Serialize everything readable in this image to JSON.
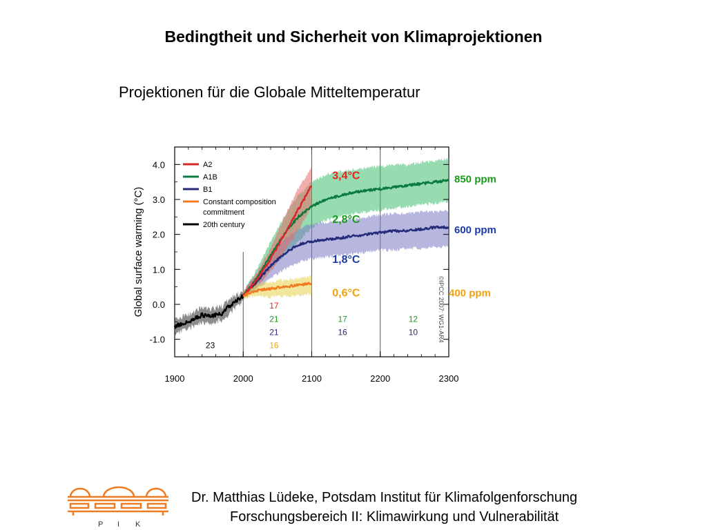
{
  "slide": {
    "title": "Bedingtheit und Sicherheit von Klimaprojektionen",
    "subtitle": "Projektionen für die Globale Mitteltemperatur"
  },
  "footer": {
    "line1": "Dr. Matthias Lüdeke, Potsdam Institut für Klimafolgenforschung",
    "line2": "Forschungsbereich II: Klimawirkung und Vulnerabilität",
    "logo_letters": [
      "P",
      "I",
      "K"
    ]
  },
  "colors": {
    "A2": "#d62728",
    "A1B": "#0b7a3e",
    "B1": "#242a7a",
    "constant": "#f07a20",
    "century20": "#000000",
    "ppm850": "#1a9a1a",
    "ppm600": "#1a3aa8",
    "ppm400": "#f0a010",
    "logo": "#f07a20"
  },
  "chart_data": {
    "type": "line",
    "ylabel": "Global surface warming (°C)",
    "xlim": [
      1900,
      2300
    ],
    "ylim": [
      -1.5,
      4.5
    ],
    "x_ticks": [
      1900,
      2000,
      2100,
      2200,
      2300
    ],
    "y_ticks": [
      {
        "v": 4.0,
        "label": "4.0"
      },
      {
        "v": 3.0,
        "label": "3.0"
      },
      {
        "v": 2.0,
        "label": "2.0"
      },
      {
        "v": 1.0,
        "label": "1.0"
      },
      {
        "v": 0.0,
        "label": "0.0"
      },
      {
        "v": -1.0,
        "label": "-1.0"
      }
    ],
    "vlines": [
      2000,
      2100,
      2200
    ],
    "legend": {
      "position": "top-left",
      "entries": [
        {
          "key": "A2",
          "label": "A2"
        },
        {
          "key": "A1B",
          "label": "A1B"
        },
        {
          "key": "B1",
          "label": "B1"
        },
        {
          "key": "constant",
          "label": "Constant composition",
          "label2": "commitment"
        },
        {
          "key": "century20",
          "label": "20th century"
        }
      ]
    },
    "series": [
      {
        "key": "century20",
        "name": "20th century",
        "x": [
          1900,
          1910,
          1920,
          1930,
          1940,
          1950,
          1960,
          1970,
          1980,
          1990,
          2000
        ],
        "y": [
          -0.65,
          -0.55,
          -0.5,
          -0.4,
          -0.3,
          -0.35,
          -0.3,
          -0.25,
          -0.05,
          0.1,
          0.25
        ],
        "lower": [
          -0.85,
          -0.75,
          -0.7,
          -0.6,
          -0.5,
          -0.55,
          -0.5,
          -0.45,
          -0.25,
          -0.08,
          0.12
        ],
        "upper": [
          -0.45,
          -0.35,
          -0.3,
          -0.2,
          -0.1,
          -0.15,
          -0.1,
          -0.05,
          0.15,
          0.28,
          0.38
        ]
      },
      {
        "key": "A2",
        "name": "A2",
        "x": [
          2000,
          2020,
          2040,
          2060,
          2080,
          2100
        ],
        "y": [
          0.25,
          0.7,
          1.3,
          2.0,
          2.7,
          3.4
        ],
        "lower": [
          0.15,
          0.5,
          0.95,
          1.5,
          2.1,
          2.8
        ],
        "upper": [
          0.35,
          0.9,
          1.6,
          2.5,
          3.3,
          3.9
        ]
      },
      {
        "key": "A1B",
        "name": "A1B",
        "x": [
          2000,
          2020,
          2040,
          2060,
          2080,
          2100,
          2120,
          2140,
          2160,
          2180,
          2200,
          2220,
          2240,
          2260,
          2280,
          2300
        ],
        "y": [
          0.25,
          0.75,
          1.4,
          2.0,
          2.5,
          2.8,
          3.0,
          3.1,
          3.2,
          3.25,
          3.3,
          3.35,
          3.4,
          3.45,
          3.5,
          3.55
        ],
        "lower": [
          0.15,
          0.5,
          1.0,
          1.4,
          1.8,
          2.2,
          2.4,
          2.5,
          2.6,
          2.65,
          2.7,
          2.75,
          2.8,
          2.85,
          2.9,
          2.95
        ],
        "upper": [
          0.35,
          1.0,
          1.8,
          2.5,
          3.1,
          3.5,
          3.7,
          3.8,
          3.85,
          3.9,
          3.95,
          4.0,
          4.0,
          4.05,
          4.1,
          4.15
        ]
      },
      {
        "key": "B1",
        "name": "B1",
        "x": [
          2000,
          2020,
          2040,
          2060,
          2080,
          2100,
          2120,
          2140,
          2160,
          2180,
          2200,
          2220,
          2240,
          2260,
          2280,
          2300
        ],
        "y": [
          0.25,
          0.65,
          1.1,
          1.45,
          1.7,
          1.8,
          1.85,
          1.9,
          1.95,
          2.0,
          2.05,
          2.1,
          2.1,
          2.15,
          2.2,
          2.2
        ],
        "lower": [
          0.15,
          0.45,
          0.75,
          1.0,
          1.2,
          1.3,
          1.35,
          1.4,
          1.45,
          1.5,
          1.55,
          1.55,
          1.6,
          1.6,
          1.65,
          1.65
        ],
        "upper": [
          0.35,
          0.85,
          1.4,
          1.85,
          2.15,
          2.3,
          2.35,
          2.4,
          2.45,
          2.5,
          2.55,
          2.6,
          2.6,
          2.65,
          2.65,
          2.7
        ]
      },
      {
        "key": "constant",
        "name": "Constant composition commitment",
        "x": [
          2000,
          2020,
          2040,
          2060,
          2080,
          2100
        ],
        "y": [
          0.25,
          0.4,
          0.45,
          0.5,
          0.55,
          0.6
        ],
        "lower": [
          0.15,
          0.25,
          0.2,
          0.25,
          0.25,
          0.3
        ],
        "upper": [
          0.35,
          0.6,
          0.65,
          0.7,
          0.75,
          0.8
        ]
      }
    ],
    "annotations": [
      {
        "text": "3,4°C",
        "x": 2130,
        "y": 3.7,
        "color": "#e8231b"
      },
      {
        "text": "2,8°C",
        "x": 2130,
        "y": 2.45,
        "color": "#1a9a1a"
      },
      {
        "text": "1,8°C",
        "x": 2130,
        "y": 1.3,
        "color": "#1a3aa8"
      },
      {
        "text": "0,6°C",
        "x": 2130,
        "y": 0.35,
        "color": "#f0a010"
      }
    ],
    "ppm_labels": [
      {
        "text": "850 ppm",
        "y": 3.6,
        "color": "#1a9a1a"
      },
      {
        "text": "600 ppm",
        "y": 2.15,
        "color": "#1a3aa8"
      },
      {
        "text": "400 ppm",
        "y": 0.35,
        "color": "#f0a010"
      }
    ],
    "model_counts": [
      {
        "text": "23",
        "x": 1952,
        "y": -1.15,
        "color": "#000000"
      },
      {
        "text": "17",
        "x": 2045,
        "y": -0.02,
        "color": "#d62728"
      },
      {
        "text": "21",
        "x": 2045,
        "y": -0.4,
        "color": "#1a9a1a"
      },
      {
        "text": "21",
        "x": 2045,
        "y": -0.78,
        "color": "#242a7a"
      },
      {
        "text": "16",
        "x": 2045,
        "y": -1.15,
        "color": "#f0a010"
      },
      {
        "text": "17",
        "x": 2145,
        "y": -0.4,
        "color": "#1a9a1a"
      },
      {
        "text": "16",
        "x": 2145,
        "y": -0.78,
        "color": "#242a7a"
      },
      {
        "text": "12",
        "x": 2248,
        "y": -0.4,
        "color": "#1a9a1a"
      },
      {
        "text": "10",
        "x": 2248,
        "y": -0.78,
        "color": "#242a7a"
      }
    ],
    "credit": "©IPCC 2007: WG1-AR4"
  }
}
